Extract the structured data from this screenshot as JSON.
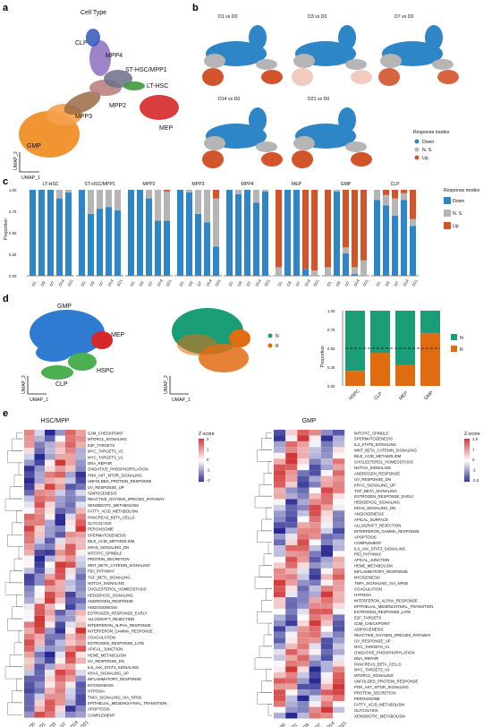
{
  "panel_labels": [
    "a",
    "b",
    "c",
    "d",
    "e"
  ],
  "panel_a": {
    "title": "Cell Type",
    "clusters": [
      {
        "name": "CLP",
        "color": "#3b5fbd"
      },
      {
        "name": "MPP4",
        "color": "#8e6dbf"
      },
      {
        "name": "ST-HSC/MPP1",
        "color": "#6b6f8a"
      },
      {
        "name": "LT-HSC",
        "color": "#3f9a3a"
      },
      {
        "name": "MPP2",
        "color": "#b87a7a"
      },
      {
        "name": "MPP3",
        "color": "#9b6b45"
      },
      {
        "name": "GMP",
        "color": "#f08a1c"
      },
      {
        "name": "MEP",
        "color": "#d62828"
      }
    ],
    "axis_y": "UMAP_2",
    "axis_x": "UMAP_1"
  },
  "panel_b": {
    "titles": [
      "D1 vs D0",
      "D3 vs D0",
      "D7 vs D0",
      "D14 vs D0",
      "D21 vs D0"
    ],
    "legend_title": "Response modes",
    "legend": [
      {
        "label": "Down",
        "color": "#2f86c6"
      },
      {
        "label": "N. S.",
        "color": "#b5b5b5"
      },
      {
        "label": "Up",
        "color": "#d2542a"
      }
    ]
  },
  "panel_c": {
    "ylabel": "Proportion",
    "yticks": [
      "1.00",
      "0.75",
      "0.50",
      "0.25",
      "0.00"
    ],
    "legend_title": "Response modes",
    "legend": [
      {
        "label": "Down",
        "color": "#2f86c6"
      },
      {
        "label": "N. S.",
        "color": "#b5b5b5"
      },
      {
        "label": "Up",
        "color": "#d2542a"
      }
    ],
    "xticks": [
      "D1",
      "D3",
      "D7",
      "D14",
      "D21"
    ]
  },
  "panel_d": {
    "umap1_labels": [
      "GMP",
      "MEP",
      "HSPC",
      "CLP"
    ],
    "umap1_colors": [
      "#2f7bd1",
      "#d62828",
      "#4caf50",
      "#4caf50"
    ],
    "umap2_legend": [
      {
        "label": "N",
        "color": "#1b9e77"
      },
      {
        "label": "R",
        "color": "#e06c12"
      }
    ],
    "axis_y": "UMAP_2",
    "axis_x": "UMAP_1",
    "bar_legend": [
      {
        "label": "N",
        "color": "#1b9e77"
      },
      {
        "label": "R",
        "color": "#e06c12"
      }
    ],
    "bar_ylabel": "Proportion",
    "bar_yticks": [
      "1.00",
      "0.75",
      "0.50",
      "0.25",
      "0.00"
    ]
  },
  "chart_data": [
    {
      "type": "bar",
      "title": "",
      "ylabel": "Proportion",
      "ylim": [
        0,
        1
      ],
      "categories": [
        "D1",
        "D3",
        "D7",
        "D14",
        "D21"
      ],
      "stacked": true,
      "facets": [
        {
          "name": "LT-HSC",
          "down": [
            1.0,
            1.0,
            1.0,
            0.9,
            0.97
          ],
          "ns": [
            0.0,
            0.0,
            0.0,
            0.1,
            0.03
          ],
          "up": [
            0,
            0,
            0,
            0,
            0
          ]
        },
        {
          "name": "ST-HSC/MPP1",
          "down": [
            1.0,
            0.72,
            0.78,
            0.8,
            0.76
          ],
          "ns": [
            0.0,
            0.28,
            0.22,
            0.2,
            0.24
          ],
          "up": [
            0,
            0,
            0,
            0,
            0
          ]
        },
        {
          "name": "MPP2",
          "down": [
            1.0,
            1.0,
            0.9,
            0.64,
            0.64
          ],
          "ns": [
            0.0,
            0.0,
            0.1,
            0.36,
            0.34
          ],
          "up": [
            0,
            0,
            0,
            0,
            0.02
          ]
        },
        {
          "name": "MPP3",
          "down": [
            1.0,
            0.97,
            0.72,
            0.62,
            0.34
          ],
          "ns": [
            0.0,
            0.03,
            0.28,
            0.38,
            0.56
          ],
          "up": [
            0,
            0,
            0,
            0,
            0.1
          ]
        },
        {
          "name": "MPP4",
          "down": [
            1.0,
            0.95,
            1.0,
            0.85,
            0.98
          ],
          "ns": [
            0.0,
            0.05,
            0.0,
            0.15,
            0.02
          ],
          "up": [
            0,
            0,
            0,
            0,
            0
          ]
        },
        {
          "name": "MEP",
          "down": [
            0.0,
            1.0,
            1.0,
            0.08,
            0.0
          ],
          "ns": [
            0.1,
            0.0,
            0.0,
            0.0,
            0.06
          ],
          "up": [
            0.9,
            0.0,
            0.0,
            0.92,
            0.94
          ]
        },
        {
          "name": "GMP",
          "down": [
            0.0,
            0.98,
            0.26,
            0.02,
            0.0
          ],
          "ns": [
            0.1,
            0.02,
            0.07,
            0.08,
            0.18
          ],
          "up": [
            0.9,
            0.0,
            0.67,
            0.9,
            0.82
          ]
        },
        {
          "name": "CLP",
          "down": [
            0.88,
            0.82,
            0.7,
            0.88,
            0.58
          ],
          "ns": [
            0.12,
            0.12,
            0.2,
            0.08,
            0.08
          ],
          "up": [
            0.0,
            0.06,
            0.1,
            0.04,
            0.34
          ]
        }
      ]
    },
    {
      "type": "bar",
      "title": "",
      "ylabel": "Proportion",
      "ylim": [
        0,
        1
      ],
      "categories": [
        "HSPC",
        "CLP",
        "MEP",
        "GMP"
      ],
      "stacked": true,
      "series": [
        {
          "name": "R",
          "values": [
            0.2,
            0.44,
            0.28,
            0.7
          ]
        },
        {
          "name": "N",
          "values": [
            0.8,
            0.56,
            0.72,
            0.3
          ]
        }
      ],
      "hline": 0.5
    },
    {
      "type": "heatmap",
      "title": "HSC/MPP",
      "legend_title": "Z-score",
      "scale_ticks": [
        "2",
        "1",
        "0",
        "-1",
        "-2"
      ],
      "columns": [
        "D0",
        "D1",
        "D3",
        "D7",
        "D14",
        "D21"
      ],
      "rows": [
        "G2M_CHECKPOINT",
        "MTORC1_SIGNALING",
        "E2F_TARGETS",
        "MYC_TARGETS_V2",
        "MYC_TARGETS_V1",
        "DNA_REPAIR",
        "OXIDATIVE_PHOSPHORYLATION",
        "PI3K_AKT_MTOR_SIGNALING",
        "UNFOLDED_PROTEIN_RESPONSE",
        "UV_RESPONSE_UP",
        "ADIPOGENESIS",
        "REACTIVE_OXYGEN_SPECIES_PATHWAY",
        "XENOBIOTIC_METABOLISM",
        "FATTY_ACID_METABOLISM",
        "PANCREAS_BETA_CELLS",
        "GLYCOLYSIS",
        "PEROXISOME",
        "SPERMATOGENESIS",
        "BILE_ACID_METABOLISM",
        "KRAS_SIGNALING_DN",
        "MITOTIC_SPINDLE",
        "PROTEIN_SECRETION",
        "WNT_BETA_CATENIN_SIGNALING",
        "P53_PATHWAY",
        "TGF_BETA_SIGNALING",
        "NOTCH_SIGNALING",
        "CHOLESTEROL_HOMEOSTASIS",
        "HEDGEHOG_SIGNALING",
        "ANDROGEN_RESPONSE",
        "ANGIOGENESIS",
        "ESTROGEN_RESPONSE_EARLY",
        "ALLOGRAFT_REJECTION",
        "INTERFERON_ALPHA_RESPONSE",
        "INTERFERON_GAMMA_RESPONSE",
        "COAGULATION",
        "ESTROGEN_RESPONSE_LATE",
        "APICAL_JUNCTION",
        "HEME_METABOLISM",
        "UV_RESPONSE_DN",
        "IL6_JAK_STAT3_SIGNALING",
        "KRAS_SIGNALING_UP",
        "INFLAMMATORY_RESPONSE",
        "MYOGENESIS",
        "HYPOXIA",
        "TNFA_SIGNALING_VIA_NFKB",
        "EPITHELIAL_MESENCHYMAL_TRANSITION",
        "APOPTOSIS",
        "COMPLEMENT"
      ],
      "highlighted_rows": [
        "G2M_CHECKPOINT",
        "MITOTIC_SPINDLE",
        "P53_PATHWAY",
        "APOPTOSIS"
      ]
    },
    {
      "type": "heatmap",
      "title": "GMP",
      "legend_title": "Z-score",
      "scale_ticks": [
        "1.5",
        "1",
        "0",
        "-1",
        "-1.5"
      ],
      "columns": [
        "D0",
        "D1",
        "D3",
        "D7",
        "D14",
        "D21"
      ],
      "rows": [
        "MITOTIC_SPINDLE",
        "SPERMATOGENESIS",
        "IL2_STAT5_SIGNALING",
        "WNT_BETA_CATENIN_SIGNALING",
        "BILE_ACID_METABOLISM",
        "CHOLESTEROL_HOMEOSTASIS",
        "NOTCH_SIGNALING",
        "ANDROGEN_RESPONSE",
        "UV_RESPONSE_DN",
        "KRAS_SIGNALING_UP",
        "TGF_BETA_SIGNALING",
        "ESTROGEN_RESPONSE_EARLY",
        "HEDGEHOG_SIGNALING",
        "KRAS_SIGNALING_DN",
        "ANGIOGENESIS",
        "APICAL_SURFACE",
        "ALLOGRAFT_REJECTION",
        "INTERFERON_GAMMA_RESPONSE",
        "APOPTOSIS",
        "COMPLEMENT",
        "IL6_JAK_STAT3_SIGNALING",
        "P53_PATHWAY",
        "APICAL_JUNCTION",
        "HEME_METABOLISM",
        "INFLAMMATORY_RESPONSE",
        "MYOGENESIS",
        "TNFA_SIGNALING_VIA_NFKB",
        "COAGULATION",
        "HYPOXIA",
        "INTERFERON_ALPHA_RESPONSE",
        "EPITHELIAL_MESENCHYMAL_TRANSITION",
        "ESTROGEN_RESPONSE_LATE",
        "E2F_TARGETS",
        "G2M_CHECKPOINT",
        "ADIPOGENESIS",
        "REACTIVE_OXYGEN_SPECIES_PATHWAY",
        "UV_RESPONSE_UP",
        "MYC_TARGETS_V1",
        "OXIDATIVE_PHOSPHORYLATION",
        "DNA_REPAIR",
        "PANCREAS_BETA_CELLS",
        "MYC_TARGETS_V2",
        "MTORC1_SIGNALING",
        "UNFOLDED_PROTEIN_RESPONSE",
        "PI3K_AKT_MTOR_SIGNALING",
        "PROTEIN_SECRETION",
        "PEROXISOME",
        "FATTY_ACID_METABOLISM",
        "GLYCOLYSIS",
        "XENOBIOTIC_METABOLISM"
      ],
      "highlighted_rows": [
        "APOPTOSIS",
        "P53_PATHWAY",
        "G2M_CHECKPOINT"
      ]
    }
  ]
}
